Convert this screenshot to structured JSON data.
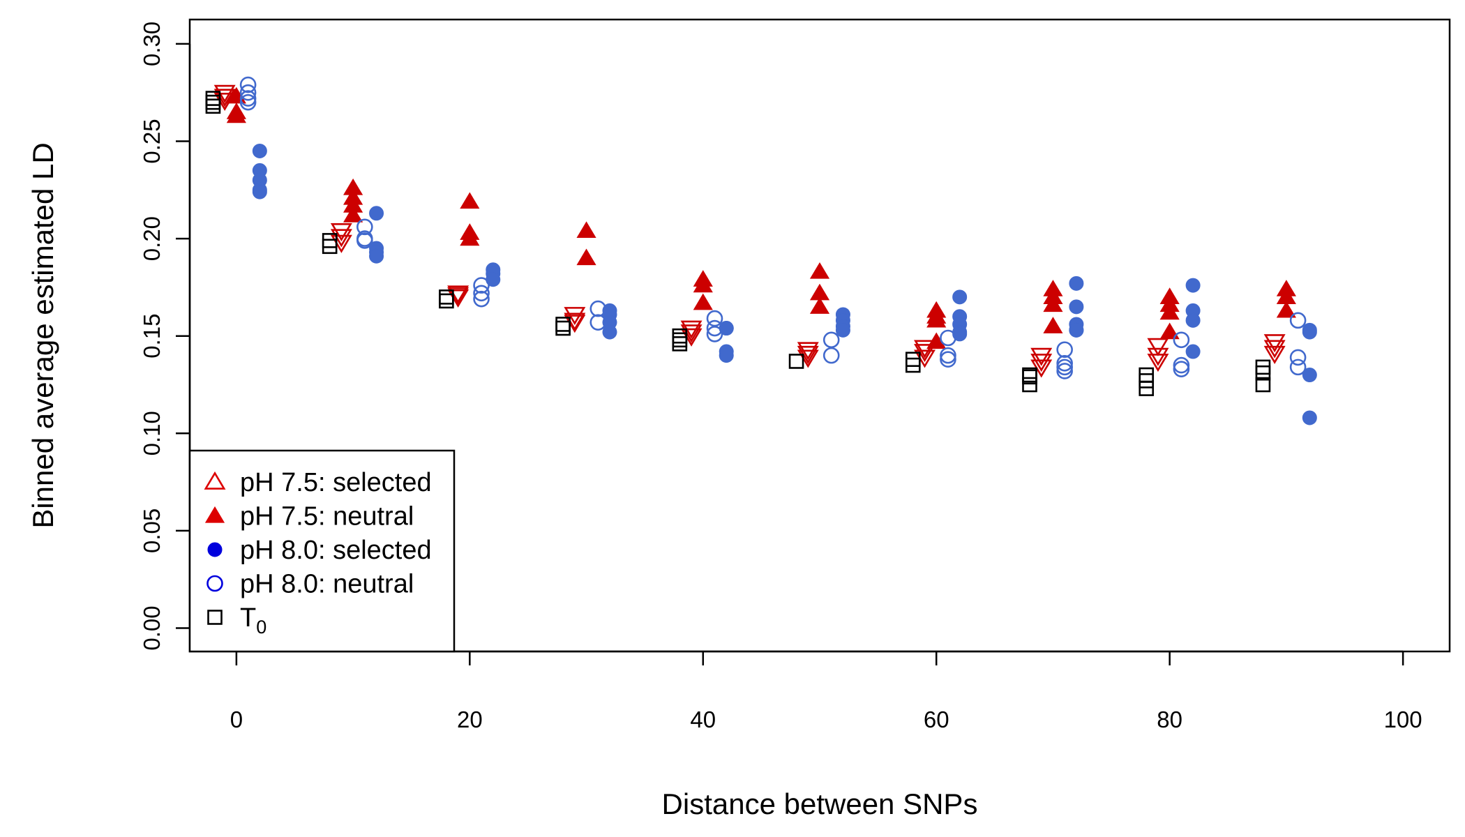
{
  "chart_data": {
    "type": "scatter",
    "title": "",
    "xlabel": "Distance between SNPs",
    "ylabel": "Binned average estimated LD",
    "xlim": [
      -4,
      104
    ],
    "ylim": [
      -0.012,
      0.3125
    ],
    "x_ticks": [
      0,
      20,
      40,
      60,
      80,
      100
    ],
    "x_tick_labels": [
      "0",
      "20",
      "40",
      "60",
      "80",
      "100"
    ],
    "y_ticks": [
      0,
      0.05,
      0.1,
      0.15,
      0.2,
      0.25,
      0.3
    ],
    "y_tick_labels": [
      "0.00",
      "0.05",
      "0.10",
      "0.15",
      "0.20",
      "0.25",
      "0.30"
    ],
    "grid": false,
    "legend_position": "bottom-left",
    "series": [
      {
        "name": "pH 7.5: selected",
        "marker": "triangle-down-open",
        "color": "#cc0000",
        "x": [
          -1,
          -1,
          -1,
          9,
          9,
          9,
          19,
          19,
          19,
          29,
          29,
          29,
          39,
          39,
          39,
          49,
          49,
          49,
          59,
          59,
          59,
          69,
          69,
          69,
          79,
          79,
          79,
          89,
          89,
          89
        ],
        "y": [
          0.275,
          0.273,
          0.271,
          0.204,
          0.201,
          0.198,
          0.172,
          0.171,
          0.17,
          0.161,
          0.158,
          0.157,
          0.154,
          0.152,
          0.15,
          0.143,
          0.141,
          0.139,
          0.144,
          0.142,
          0.139,
          0.14,
          0.137,
          0.134,
          0.145,
          0.14,
          0.137,
          0.147,
          0.144,
          0.141
        ]
      },
      {
        "name": "pH 7.5: neutral",
        "marker": "triangle-filled",
        "color": "#cc0000",
        "x": [
          0,
          0,
          0,
          10,
          10,
          10,
          10,
          20,
          20,
          20,
          30,
          30,
          40,
          40,
          40,
          50,
          50,
          50,
          60,
          60,
          60,
          60,
          70,
          70,
          70,
          70,
          80,
          80,
          80,
          80,
          90,
          90,
          90
        ],
        "y": [
          0.273,
          0.265,
          0.263,
          0.226,
          0.221,
          0.217,
          0.212,
          0.219,
          0.203,
          0.2,
          0.204,
          0.19,
          0.179,
          0.176,
          0.167,
          0.183,
          0.172,
          0.165,
          0.163,
          0.16,
          0.158,
          0.147,
          0.174,
          0.17,
          0.166,
          0.155,
          0.17,
          0.166,
          0.162,
          0.152,
          0.174,
          0.17,
          0.163
        ]
      },
      {
        "name": "pH 8.0: selected",
        "marker": "circle-filled",
        "color": "#4169cd",
        "x": [
          2,
          2,
          2,
          2,
          2,
          12,
          12,
          12,
          12,
          22,
          22,
          22,
          32,
          32,
          32,
          32,
          42,
          42,
          42,
          42,
          52,
          52,
          52,
          52,
          62,
          62,
          62,
          62,
          62,
          72,
          72,
          72,
          72,
          72,
          82,
          82,
          82,
          82,
          92,
          92,
          92,
          92
        ],
        "y": [
          0.245,
          0.235,
          0.23,
          0.225,
          0.224,
          0.213,
          0.195,
          0.193,
          0.191,
          0.184,
          0.182,
          0.179,
          0.163,
          0.161,
          0.157,
          0.152,
          0.154,
          0.154,
          0.142,
          0.14,
          0.161,
          0.158,
          0.155,
          0.153,
          0.17,
          0.16,
          0.156,
          0.152,
          0.151,
          0.177,
          0.165,
          0.156,
          0.153,
          0.153,
          0.176,
          0.163,
          0.158,
          0.142,
          0.153,
          0.152,
          0.13,
          0.108
        ]
      },
      {
        "name": "pH 8.0: neutral",
        "marker": "circle-open",
        "color": "#4169cd",
        "x": [
          1,
          1,
          1,
          1,
          11,
          11,
          11,
          21,
          21,
          21,
          31,
          31,
          41,
          41,
          41,
          51,
          51,
          61,
          61,
          61,
          71,
          71,
          71,
          71,
          81,
          81,
          81,
          91,
          91,
          91
        ],
        "y": [
          0.279,
          0.275,
          0.272,
          0.27,
          0.206,
          0.2,
          0.199,
          0.176,
          0.172,
          0.169,
          0.164,
          0.157,
          0.159,
          0.154,
          0.151,
          0.148,
          0.14,
          0.149,
          0.14,
          0.138,
          0.143,
          0.136,
          0.134,
          0.132,
          0.148,
          0.135,
          0.133,
          0.158,
          0.139,
          0.134
        ]
      },
      {
        "name": "T0",
        "marker": "square-open",
        "color": "#000000",
        "x": [
          -2,
          -2,
          -2,
          8,
          8,
          18,
          18,
          28,
          28,
          38,
          38,
          38,
          48,
          58,
          58,
          68,
          68,
          68,
          78,
          78,
          78,
          88,
          88,
          88
        ],
        "y": [
          0.272,
          0.27,
          0.268,
          0.199,
          0.196,
          0.17,
          0.168,
          0.156,
          0.154,
          0.15,
          0.148,
          0.146,
          0.137,
          0.138,
          0.135,
          0.13,
          0.129,
          0.125,
          0.13,
          0.127,
          0.123,
          0.134,
          0.131,
          0.125
        ]
      }
    ]
  },
  "legend": [
    {
      "label": "pH 7.5: selected",
      "marker": "triangle-open",
      "color": "#dd0000"
    },
    {
      "label": "pH 7.5: neutral",
      "marker": "triangle-filled",
      "color": "#dd0000"
    },
    {
      "label": "pH 8.0: selected",
      "marker": "circle-filled",
      "color": "#0000dd"
    },
    {
      "label": "pH 8.0: neutral",
      "marker": "circle-open",
      "color": "#0000dd"
    },
    {
      "label": "T",
      "subscript": "0",
      "marker": "square-open",
      "color": "#000000"
    }
  ]
}
